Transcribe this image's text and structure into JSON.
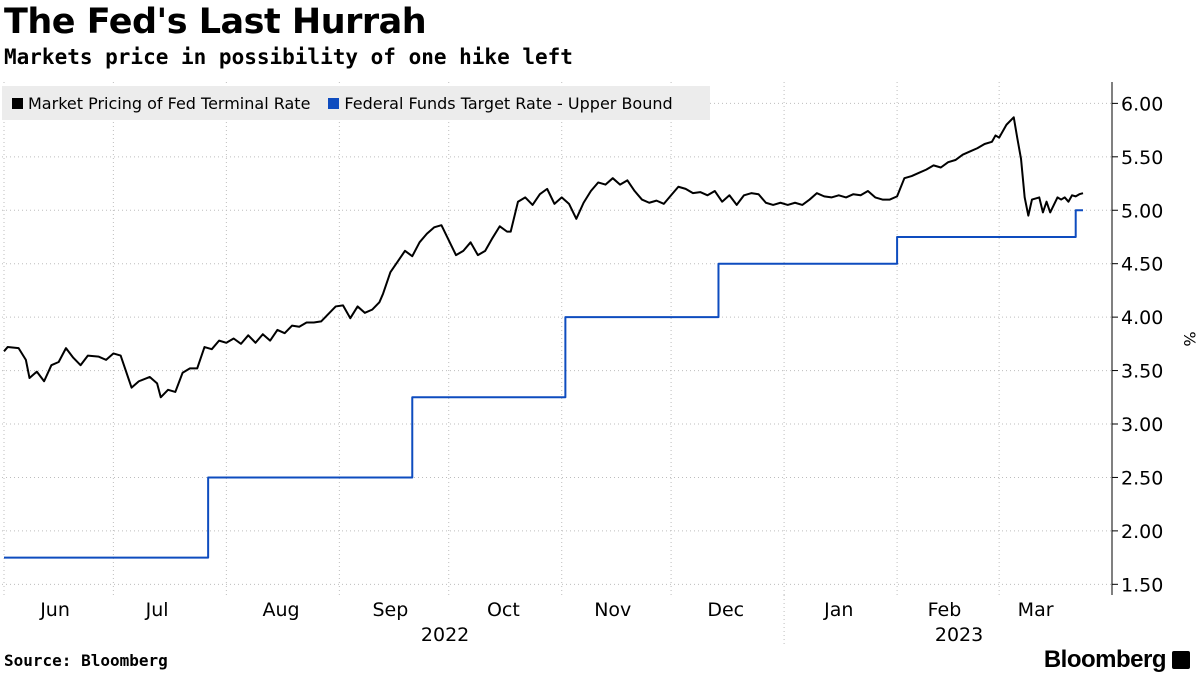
{
  "title": "The Fed's Last Hurrah",
  "subtitle": "Markets price in possibility of one hike left",
  "source": "Source: Bloomberg",
  "brand": "Bloomberg",
  "chart_data": {
    "type": "line",
    "title": "The Fed's Last Hurrah",
    "subtitle": "Markets price in possibility of one hike left",
    "ylabel": "%",
    "ylim": [
      1.4,
      6.2
    ],
    "y_ticks": [
      "6.00",
      "5.50",
      "5.00",
      "4.50",
      "4.00",
      "3.50",
      "3.00",
      "2.50",
      "2.00",
      "1.50"
    ],
    "xlim": [
      "2022-06-01",
      "2023-03-24"
    ],
    "x_month_labels": [
      {
        "label": "Jun",
        "date": "2022-06-15"
      },
      {
        "label": "Jul",
        "date": "2022-07-13"
      },
      {
        "label": "Aug",
        "date": "2022-08-16"
      },
      {
        "label": "Sep",
        "date": "2022-09-15"
      },
      {
        "label": "Oct",
        "date": "2022-10-16"
      },
      {
        "label": "Nov",
        "date": "2022-11-15"
      },
      {
        "label": "Dec",
        "date": "2022-12-16"
      },
      {
        "label": "Jan",
        "date": "2023-01-16"
      },
      {
        "label": "Feb",
        "date": "2023-02-14"
      },
      {
        "label": "Mar",
        "date": "2023-03-11"
      }
    ],
    "x_year_labels": [
      {
        "label": "2022",
        "date": "2022-09-30"
      },
      {
        "label": "2023",
        "date": "2023-02-18"
      }
    ],
    "x_grid_dates": [
      "2022-06-01",
      "2022-07-01",
      "2022-08-01",
      "2022-09-01",
      "2022-10-01",
      "2022-11-01",
      "2022-12-01",
      "2023-01-01",
      "2023-02-01",
      "2023-03-01"
    ],
    "grid": true,
    "legend_position": "top-left",
    "series": [
      {
        "name": "Market Pricing of Fed Terminal Rate",
        "color": "#000000",
        "points": [
          [
            "2022-06-01",
            3.68
          ],
          [
            "2022-06-02",
            3.72
          ],
          [
            "2022-06-05",
            3.71
          ],
          [
            "2022-06-07",
            3.6
          ],
          [
            "2022-06-08",
            3.43
          ],
          [
            "2022-06-10",
            3.49
          ],
          [
            "2022-06-12",
            3.4
          ],
          [
            "2022-06-14",
            3.55
          ],
          [
            "2022-06-16",
            3.58
          ],
          [
            "2022-06-18",
            3.71
          ],
          [
            "2022-06-20",
            3.62
          ],
          [
            "2022-06-22",
            3.55
          ],
          [
            "2022-06-24",
            3.64
          ],
          [
            "2022-06-27",
            3.63
          ],
          [
            "2022-06-29",
            3.6
          ],
          [
            "2022-07-01",
            3.66
          ],
          [
            "2022-07-03",
            3.64
          ],
          [
            "2022-07-06",
            3.34
          ],
          [
            "2022-07-08",
            3.4
          ],
          [
            "2022-07-11",
            3.44
          ],
          [
            "2022-07-13",
            3.38
          ],
          [
            "2022-07-14",
            3.25
          ],
          [
            "2022-07-16",
            3.32
          ],
          [
            "2022-07-18",
            3.3
          ],
          [
            "2022-07-20",
            3.48
          ],
          [
            "2022-07-22",
            3.52
          ],
          [
            "2022-07-24",
            3.52
          ],
          [
            "2022-07-26",
            3.72
          ],
          [
            "2022-07-28",
            3.7
          ],
          [
            "2022-07-30",
            3.78
          ],
          [
            "2022-08-01",
            3.76
          ],
          [
            "2022-08-03",
            3.8
          ],
          [
            "2022-08-05",
            3.75
          ],
          [
            "2022-08-07",
            3.83
          ],
          [
            "2022-08-09",
            3.76
          ],
          [
            "2022-08-11",
            3.84
          ],
          [
            "2022-08-13",
            3.78
          ],
          [
            "2022-08-15",
            3.88
          ],
          [
            "2022-08-17",
            3.85
          ],
          [
            "2022-08-19",
            3.92
          ],
          [
            "2022-08-21",
            3.91
          ],
          [
            "2022-08-23",
            3.95
          ],
          [
            "2022-08-25",
            3.95
          ],
          [
            "2022-08-27",
            3.96
          ],
          [
            "2022-08-29",
            4.03
          ],
          [
            "2022-08-31",
            4.1
          ],
          [
            "2022-09-02",
            4.11
          ],
          [
            "2022-09-04",
            3.99
          ],
          [
            "2022-09-06",
            4.1
          ],
          [
            "2022-09-08",
            4.04
          ],
          [
            "2022-09-10",
            4.07
          ],
          [
            "2022-09-12",
            4.14
          ],
          [
            "2022-09-13",
            4.22
          ],
          [
            "2022-09-15",
            4.42
          ],
          [
            "2022-09-17",
            4.52
          ],
          [
            "2022-09-19",
            4.62
          ],
          [
            "2022-09-21",
            4.57
          ],
          [
            "2022-09-23",
            4.7
          ],
          [
            "2022-09-25",
            4.78
          ],
          [
            "2022-09-27",
            4.84
          ],
          [
            "2022-09-29",
            4.86
          ],
          [
            "2022-10-01",
            4.72
          ],
          [
            "2022-10-03",
            4.58
          ],
          [
            "2022-10-05",
            4.62
          ],
          [
            "2022-10-07",
            4.7
          ],
          [
            "2022-10-09",
            4.58
          ],
          [
            "2022-10-11",
            4.62
          ],
          [
            "2022-10-13",
            4.74
          ],
          [
            "2022-10-15",
            4.85
          ],
          [
            "2022-10-17",
            4.8
          ],
          [
            "2022-10-18",
            4.8
          ],
          [
            "2022-10-20",
            5.08
          ],
          [
            "2022-10-22",
            5.12
          ],
          [
            "2022-10-24",
            5.05
          ],
          [
            "2022-10-26",
            5.15
          ],
          [
            "2022-10-28",
            5.2
          ],
          [
            "2022-10-30",
            5.06
          ],
          [
            "2022-11-01",
            5.12
          ],
          [
            "2022-11-03",
            5.06
          ],
          [
            "2022-11-05",
            4.92
          ],
          [
            "2022-11-07",
            5.07
          ],
          [
            "2022-11-09",
            5.18
          ],
          [
            "2022-11-11",
            5.26
          ],
          [
            "2022-11-13",
            5.24
          ],
          [
            "2022-11-15",
            5.3
          ],
          [
            "2022-11-17",
            5.24
          ],
          [
            "2022-11-19",
            5.28
          ],
          [
            "2022-11-21",
            5.18
          ],
          [
            "2022-11-23",
            5.1
          ],
          [
            "2022-11-25",
            5.07
          ],
          [
            "2022-11-27",
            5.09
          ],
          [
            "2022-11-29",
            5.06
          ],
          [
            "2022-12-01",
            5.14
          ],
          [
            "2022-12-03",
            5.22
          ],
          [
            "2022-12-05",
            5.2
          ],
          [
            "2022-12-07",
            5.16
          ],
          [
            "2022-12-09",
            5.17
          ],
          [
            "2022-12-11",
            5.14
          ],
          [
            "2022-12-13",
            5.18
          ],
          [
            "2022-12-15",
            5.08
          ],
          [
            "2022-12-17",
            5.14
          ],
          [
            "2022-12-19",
            5.05
          ],
          [
            "2022-12-21",
            5.14
          ],
          [
            "2022-12-23",
            5.16
          ],
          [
            "2022-12-25",
            5.15
          ],
          [
            "2022-12-27",
            5.07
          ],
          [
            "2022-12-29",
            5.05
          ],
          [
            "2022-12-31",
            5.07
          ],
          [
            "2023-01-02",
            5.05
          ],
          [
            "2023-01-04",
            5.07
          ],
          [
            "2023-01-06",
            5.05
          ],
          [
            "2023-01-08",
            5.1
          ],
          [
            "2023-01-10",
            5.16
          ],
          [
            "2023-01-12",
            5.13
          ],
          [
            "2023-01-14",
            5.12
          ],
          [
            "2023-01-16",
            5.14
          ],
          [
            "2023-01-18",
            5.12
          ],
          [
            "2023-01-20",
            5.15
          ],
          [
            "2023-01-22",
            5.14
          ],
          [
            "2023-01-24",
            5.18
          ],
          [
            "2023-01-26",
            5.12
          ],
          [
            "2023-01-28",
            5.1
          ],
          [
            "2023-01-30",
            5.1
          ],
          [
            "2023-02-01",
            5.13
          ],
          [
            "2023-02-03",
            5.3
          ],
          [
            "2023-02-05",
            5.32
          ],
          [
            "2023-02-07",
            5.35
          ],
          [
            "2023-02-09",
            5.38
          ],
          [
            "2023-02-11",
            5.42
          ],
          [
            "2023-02-13",
            5.4
          ],
          [
            "2023-02-15",
            5.45
          ],
          [
            "2023-02-17",
            5.47
          ],
          [
            "2023-02-19",
            5.52
          ],
          [
            "2023-02-21",
            5.55
          ],
          [
            "2023-02-23",
            5.58
          ],
          [
            "2023-02-25",
            5.62
          ],
          [
            "2023-02-27",
            5.64
          ],
          [
            "2023-02-28",
            5.7
          ],
          [
            "2023-03-01",
            5.68
          ],
          [
            "2023-03-03",
            5.8
          ],
          [
            "2023-03-05",
            5.87
          ],
          [
            "2023-03-06",
            5.67
          ],
          [
            "2023-03-07",
            5.48
          ],
          [
            "2023-03-08",
            5.12
          ],
          [
            "2023-03-09",
            4.95
          ],
          [
            "2023-03-10",
            5.1
          ],
          [
            "2023-03-12",
            5.12
          ],
          [
            "2023-03-13",
            4.98
          ],
          [
            "2023-03-14",
            5.08
          ],
          [
            "2023-03-15",
            4.98
          ],
          [
            "2023-03-16",
            5.05
          ],
          [
            "2023-03-17",
            5.12
          ],
          [
            "2023-03-18",
            5.1
          ],
          [
            "2023-03-19",
            5.12
          ],
          [
            "2023-03-20",
            5.08
          ],
          [
            "2023-03-21",
            5.14
          ],
          [
            "2023-03-22",
            5.13
          ],
          [
            "2023-03-23",
            5.15
          ],
          [
            "2023-03-24",
            5.16
          ]
        ]
      },
      {
        "name": "Federal Funds Target Rate - Upper Bound",
        "color": "#0e4cbf",
        "step": true,
        "points": [
          [
            "2022-06-01",
            1.75
          ],
          [
            "2022-07-27",
            2.5
          ],
          [
            "2022-09-21",
            3.25
          ],
          [
            "2022-11-02",
            4.0
          ],
          [
            "2022-12-14",
            4.5
          ],
          [
            "2023-02-01",
            4.75
          ],
          [
            "2023-03-22",
            5.0
          ],
          [
            "2023-03-24",
            5.0
          ]
        ]
      }
    ]
  }
}
